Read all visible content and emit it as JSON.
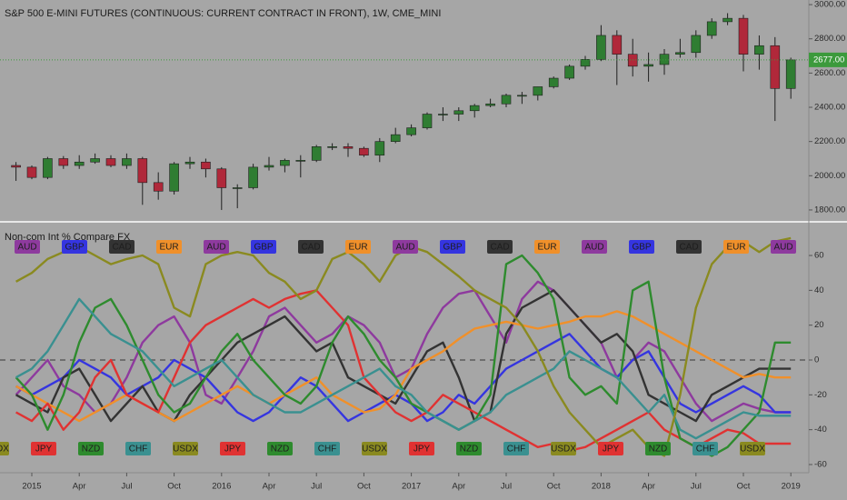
{
  "chart_data": [
    {
      "type": "candlestick",
      "title": "S&P 500 E-MINI FUTURES (CONTINUOUS: CURRENT CONTRACT IN FRONT), 1W, CME_MINI",
      "categories": [
        null,
        "2015",
        null,
        null,
        "Apr",
        null,
        null,
        "Jul",
        null,
        null,
        "Oct",
        null,
        null,
        "2016",
        null,
        null,
        "Apr",
        null,
        null,
        "Jul",
        null,
        null,
        "Oct",
        null,
        null,
        "2017",
        null,
        null,
        "Apr",
        null,
        null,
        "Jul",
        null,
        null,
        "Oct",
        null,
        null,
        "2018",
        null,
        null,
        "Apr",
        null,
        null,
        "Jul",
        null,
        null,
        "Oct",
        null,
        null,
        "2019"
      ],
      "open": [
        2060,
        2050,
        1990,
        2100,
        2060,
        2080,
        2100,
        2060,
        2100,
        1960,
        1910,
        2070,
        2080,
        2040,
        1930,
        1930,
        2050,
        2060,
        2090,
        2090,
        2170,
        2170,
        2160,
        2120,
        2200,
        2240,
        2280,
        2360,
        2360,
        2380,
        2410,
        2420,
        2470,
        2470,
        2520,
        2570,
        2640,
        2680,
        2820,
        2710,
        2640,
        2650,
        2710,
        2720,
        2820,
        2900,
        2920,
        2710,
        2760,
        2510
      ],
      "high": [
        2080,
        2060,
        2110,
        2115,
        2120,
        2130,
        2120,
        2130,
        2110,
        2020,
        2080,
        2110,
        2100,
        2050,
        1950,
        2070,
        2110,
        2100,
        2120,
        2180,
        2190,
        2190,
        2170,
        2220,
        2280,
        2300,
        2370,
        2400,
        2400,
        2420,
        2450,
        2480,
        2490,
        2520,
        2580,
        2650,
        2700,
        2880,
        2850,
        2800,
        2720,
        2740,
        2800,
        2850,
        2920,
        2950,
        2940,
        2820,
        2810,
        2690
      ],
      "low": [
        1970,
        1980,
        1980,
        2040,
        2040,
        2070,
        2050,
        2040,
        1830,
        1860,
        1890,
        2040,
        1990,
        1800,
        1810,
        1920,
        2030,
        2020,
        1990,
        2080,
        2150,
        2110,
        2110,
        2080,
        2190,
        2230,
        2270,
        2320,
        2320,
        2340,
        2400,
        2400,
        2420,
        2440,
        2510,
        2560,
        2620,
        2670,
        2530,
        2580,
        2550,
        2590,
        2690,
        2690,
        2800,
        2880,
        2610,
        2620,
        2320,
        2450
      ],
      "close": [
        2050,
        1990,
        2100,
        2060,
        2080,
        2100,
        2060,
        2100,
        1960,
        1910,
        2070,
        2080,
        2040,
        1930,
        1930,
        2050,
        2060,
        2090,
        2090,
        2170,
        2170,
        2160,
        2120,
        2200,
        2240,
        2280,
        2360,
        2360,
        2380,
        2410,
        2420,
        2470,
        2470,
        2520,
        2570,
        2640,
        2680,
        2820,
        2710,
        2640,
        2650,
        2710,
        2720,
        2820,
        2900,
        2920,
        2710,
        2760,
        2510,
        2677
      ],
      "up_color": "#2f7d32",
      "down_color": "#b0283a",
      "ylim": [
        1736,
        3027
      ],
      "yticks": [
        {
          "value": 1800,
          "label": "1800.00"
        },
        {
          "value": 2000,
          "label": "2000.00"
        },
        {
          "value": 2200,
          "label": "2200.00"
        },
        {
          "value": 2400,
          "label": "2400.00"
        },
        {
          "value": 2600,
          "label": "2600.00"
        },
        {
          "value": 2800,
          "label": "2800.00"
        },
        {
          "value": 3000,
          "label": "3000.00"
        }
      ],
      "last_price": {
        "value": 2677,
        "label": "2677.00"
      },
      "last_price_color": "#3c9a3c"
    },
    {
      "type": "line",
      "title": "Non-com Int % Compare FX",
      "series": [
        {
          "name": "AUD",
          "color": "#8e3a9e",
          "values": [
            -20,
            -10,
            0,
            -15,
            -20,
            -30,
            -25,
            -10,
            10,
            20,
            25,
            10,
            -20,
            -25,
            -10,
            5,
            25,
            30,
            20,
            10,
            15,
            25,
            20,
            10,
            -10,
            -5,
            15,
            30,
            38,
            40,
            25,
            10,
            35,
            45,
            40,
            30,
            20,
            10,
            -10,
            0,
            10,
            5,
            -10,
            -25,
            -35,
            -30,
            -25,
            -28,
            -30,
            -30
          ]
        },
        {
          "name": "GBP",
          "color": "#3535e0",
          "values": [
            -15,
            -20,
            -15,
            -10,
            0,
            -5,
            -10,
            -20,
            -15,
            -10,
            0,
            -5,
            -10,
            -20,
            -30,
            -35,
            -30,
            -20,
            -10,
            -15,
            -25,
            -35,
            -30,
            -25,
            -20,
            -25,
            -35,
            -30,
            -20,
            -25,
            -15,
            -5,
            0,
            5,
            10,
            15,
            5,
            -5,
            -10,
            0,
            5,
            -10,
            -25,
            -30,
            -25,
            -20,
            -15,
            -20,
            -30,
            -30
          ]
        },
        {
          "name": "CAD",
          "color": "#333333",
          "values": [
            -20,
            -25,
            -30,
            -10,
            -5,
            -20,
            -35,
            -25,
            -15,
            -30,
            -35,
            -20,
            -10,
            0,
            10,
            15,
            20,
            25,
            15,
            5,
            10,
            -10,
            -15,
            -20,
            -25,
            -10,
            5,
            10,
            -10,
            -35,
            -30,
            15,
            30,
            35,
            40,
            30,
            20,
            10,
            15,
            5,
            -20,
            -25,
            -30,
            -35,
            -20,
            -15,
            -10,
            -5,
            -5,
            -5
          ]
        },
        {
          "name": "EUR",
          "color": "#f0902a",
          "values": [
            -15,
            -20,
            -25,
            -30,
            -35,
            -30,
            -25,
            -20,
            -25,
            -30,
            -35,
            -30,
            -25,
            -20,
            -15,
            -20,
            -25,
            -20,
            -15,
            -10,
            -20,
            -25,
            -30,
            -28,
            -20,
            -5,
            0,
            5,
            12,
            18,
            20,
            22,
            20,
            18,
            20,
            22,
            25,
            25,
            28,
            25,
            20,
            15,
            10,
            5,
            0,
            -5,
            -10,
            -8,
            -10,
            -10
          ]
        },
        {
          "name": "JPY",
          "color": "#e03232",
          "values": [
            -30,
            -35,
            -25,
            -40,
            -30,
            -10,
            0,
            -20,
            -25,
            -30,
            -10,
            10,
            20,
            25,
            30,
            35,
            30,
            35,
            38,
            40,
            30,
            20,
            -10,
            -20,
            -30,
            -35,
            -30,
            -20,
            -25,
            -30,
            -35,
            -40,
            -45,
            -50,
            -48,
            -52,
            -50,
            -45,
            -40,
            -35,
            -30,
            -40,
            -45,
            -50,
            -45,
            -40,
            -42,
            -48,
            -48,
            -48
          ]
        },
        {
          "name": "NZD",
          "color": "#2e8b2e",
          "values": [
            -10,
            -20,
            -40,
            -20,
            10,
            30,
            35,
            20,
            0,
            -20,
            -30,
            -25,
            -10,
            5,
            15,
            0,
            -10,
            -20,
            -25,
            -15,
            10,
            25,
            15,
            0,
            -10,
            -25,
            -30,
            -35,
            -40,
            -35,
            -20,
            55,
            60,
            50,
            35,
            -10,
            -20,
            -15,
            -25,
            40,
            45,
            -10,
            -45,
            -50,
            -55,
            -50,
            -40,
            -30,
            10,
            10
          ]
        },
        {
          "name": "CHF",
          "color": "#3a9090",
          "values": [
            -10,
            -5,
            5,
            20,
            35,
            25,
            15,
            10,
            5,
            -5,
            -15,
            -10,
            -5,
            0,
            -10,
            -20,
            -25,
            -30,
            -30,
            -25,
            -20,
            -15,
            -10,
            -5,
            -15,
            -20,
            -30,
            -35,
            -40,
            -35,
            -30,
            -20,
            -15,
            -10,
            -5,
            5,
            0,
            -5,
            -10,
            -20,
            -30,
            -20,
            -40,
            -45,
            -40,
            -35,
            -30,
            -32,
            -32,
            -32
          ]
        },
        {
          "name": "USDX",
          "color": "#8a8a20",
          "values": [
            45,
            50,
            58,
            62,
            65,
            60,
            55,
            58,
            60,
            55,
            30,
            25,
            55,
            60,
            62,
            60,
            50,
            45,
            35,
            40,
            58,
            62,
            55,
            45,
            60,
            65,
            62,
            55,
            48,
            40,
            35,
            30,
            20,
            5,
            -15,
            -30,
            -40,
            -50,
            -45,
            -40,
            -50,
            -55,
            -20,
            30,
            55,
            65,
            68,
            62,
            68,
            70
          ]
        }
      ],
      "ylim": [
        -64.7,
        78.8
      ],
      "yticks": [
        -60,
        -40,
        -20,
        0,
        20,
        40,
        60
      ],
      "hline": 0
    }
  ]
}
